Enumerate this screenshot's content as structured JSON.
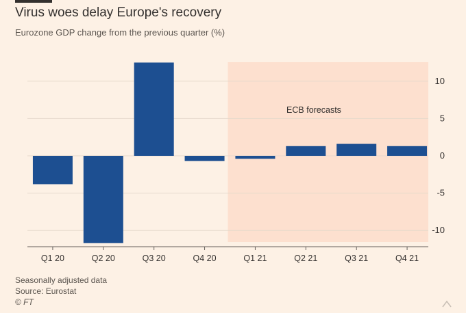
{
  "title": "Virus woes delay Europe's recovery",
  "subtitle": "Eurozone GDP change from the previous quarter (%)",
  "footnotes": {
    "note": "Seasonally adjusted data",
    "source": "Source: Eurostat",
    "credit": "© FT"
  },
  "colors": {
    "background": "#fdf1e5",
    "bar": "#1d4f91",
    "forecast_shade": "#fde0cf",
    "gridline": "#e6d9cc",
    "text": "#33302e",
    "muted_text": "#66605c"
  },
  "chart_data": {
    "type": "bar",
    "title": "Virus woes delay Europe's recovery",
    "subtitle": "Eurozone GDP change from the previous quarter (%)",
    "categories": [
      "Q1 20",
      "Q2 20",
      "Q3 20",
      "Q4 20",
      "Q1 21",
      "Q2 21",
      "Q3 21",
      "Q4 21"
    ],
    "values": [
      -3.8,
      -11.7,
      12.5,
      -0.7,
      -0.4,
      1.3,
      1.6,
      1.3
    ],
    "ylim": [
      -11.7,
      12.5
    ],
    "yticks": [
      10,
      5,
      0,
      -5,
      -10
    ],
    "ytick_labels": [
      "10",
      "5",
      "0",
      "-5",
      "-10"
    ],
    "xlabel": "",
    "ylabel": "",
    "y_axis_side": "right",
    "grid": true,
    "forecast_region": {
      "start_category": "Q1 21",
      "end_category": "Q4 21",
      "label": "ECB forecasts"
    }
  }
}
